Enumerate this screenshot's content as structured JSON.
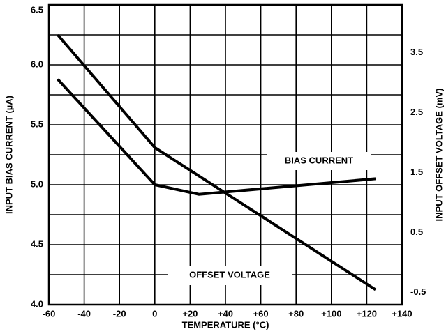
{
  "chart_data": {
    "type": "line",
    "x_label": "TEMPERATURE (°C)",
    "y_label": "INPUT BIAS CURRENT (µA)",
    "y2_label": "INPUT OFFSET VOLTAGE (mV)",
    "annotations": [
      "BIAS CURRENT",
      "OFFSET VOLTAGE"
    ],
    "series": [
      {
        "name": "BIAS CURRENT",
        "color": "#000000",
        "x": [
          -55,
          0,
          25,
          125
        ],
        "values": [
          5.88,
          5.0,
          4.92,
          5.05
        ]
      },
      {
        "name": "OFFSET VOLTAGE",
        "color": "#000000",
        "axis": "y2",
        "x": [
          -55,
          0,
          125
        ],
        "values": [
          3.8,
          1.92,
          -0.45
        ]
      }
    ],
    "xlim": [
      -60,
      140
    ],
    "xticks": [
      -60,
      -40,
      -20,
      0,
      {
        "value": 20,
        "label": "+20"
      },
      {
        "value": 40,
        "label": "+40"
      },
      {
        "value": 60,
        "label": "+60"
      },
      {
        "value": 80,
        "label": "+80"
      },
      {
        "value": 100,
        "label": "+100"
      },
      {
        "value": 120,
        "label": "+120"
      },
      {
        "value": 140,
        "label": "+140"
      }
    ],
    "ylim": [
      4.0,
      6.5
    ],
    "yticks": [
      {
        "value": 4,
        "label": "4.0"
      },
      4.5,
      {
        "value": 5,
        "label": "5.0"
      },
      5.5,
      {
        "value": 6,
        "label": "6.0"
      },
      6.5
    ],
    "yminor": [
      4.25,
      4.75,
      5.25,
      5.75,
      6.25
    ],
    "y2lim": [
      -0.7,
      4.3
    ],
    "y2ticks": [
      -0.5,
      0.5,
      1.5,
      2.5,
      3.5
    ],
    "grid": true
  }
}
